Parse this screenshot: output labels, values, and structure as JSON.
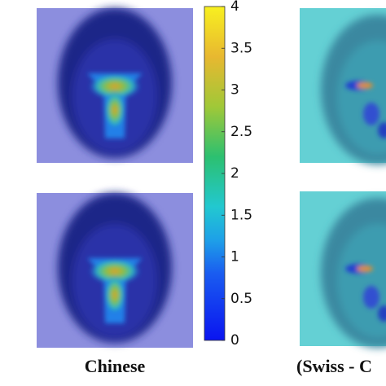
{
  "chart_data": {
    "type": "heatmap",
    "panel_labels": [
      "Chinese",
      "(Swiss - C"
    ],
    "colorbar": {
      "clim": [
        0,
        4
      ],
      "cticks": [
        0,
        0.5,
        1,
        1.5,
        2,
        2.5,
        3,
        3.5,
        4
      ]
    }
  }
}
